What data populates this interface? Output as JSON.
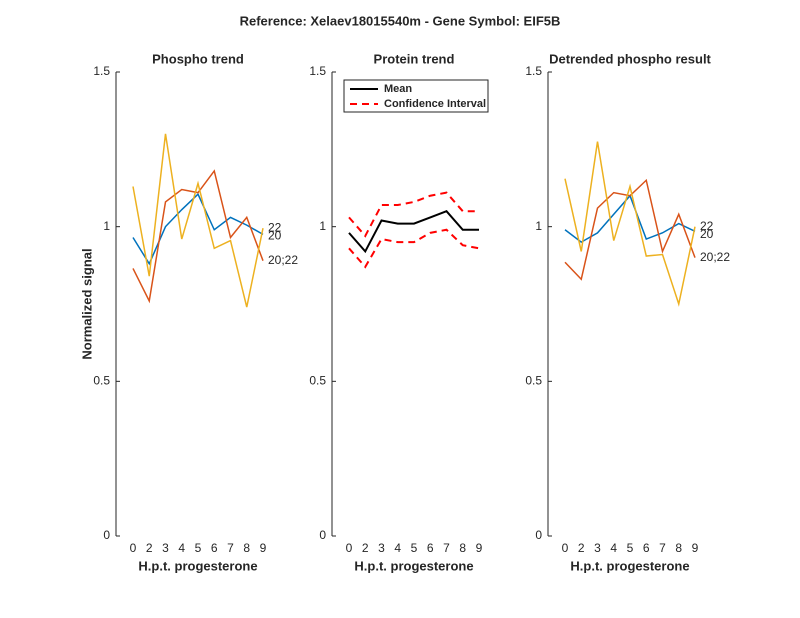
{
  "title": "Reference:  Xelaev18015540m - Gene Symbol:  EIF5B",
  "chart_data": [
    {
      "type": "line",
      "title": "Phospho trend",
      "xlabel": "H.p.t. progesterone",
      "ylabel": "Normalized signal",
      "categories": [
        "0",
        "2",
        "3",
        "4",
        "5",
        "6",
        "7",
        "8",
        "9"
      ],
      "ylim": [
        0,
        1.5
      ],
      "yticks": [
        0,
        0.5,
        1,
        1.5
      ],
      "legend": "end-labels",
      "series": [
        {
          "name": "20",
          "color": "#0072BD",
          "values": [
            0.965,
            0.88,
            1.0,
            1.055,
            1.105,
            0.99,
            1.03,
            1.005,
            0.975
          ]
        },
        {
          "name": "20;22",
          "color": "#D95319",
          "values": [
            0.865,
            0.76,
            1.08,
            1.12,
            1.11,
            1.18,
            0.965,
            1.03,
            0.89
          ]
        },
        {
          "name": "22",
          "color": "#EDB120",
          "values": [
            1.13,
            0.84,
            1.3,
            0.96,
            1.14,
            0.93,
            0.955,
            0.74,
            0.995
          ]
        }
      ]
    },
    {
      "type": "line",
      "title": "Protein trend",
      "xlabel": "H.p.t. progesterone",
      "categories": [
        "0",
        "2",
        "3",
        "4",
        "5",
        "6",
        "7",
        "8",
        "9"
      ],
      "ylim": [
        0,
        1.5
      ],
      "yticks": [
        0,
        0.5,
        1,
        1.5
      ],
      "legend": "upper left",
      "series": [
        {
          "name": "Mean",
          "color": "#000000",
          "values": [
            0.98,
            0.92,
            1.02,
            1.01,
            1.01,
            1.03,
            1.05,
            0.99,
            0.99
          ]
        },
        {
          "name": "Confidence Interval",
          "color": "#FF0000",
          "dashed": true,
          "values": [
            1.03,
            0.97,
            1.07,
            1.07,
            1.08,
            1.1,
            1.11,
            1.05,
            1.05
          ],
          "lower_values": [
            0.93,
            0.87,
            0.96,
            0.95,
            0.95,
            0.98,
            0.99,
            0.94,
            0.93
          ]
        }
      ]
    },
    {
      "type": "line",
      "title": "Detrended phospho result",
      "xlabel": "H.p.t. progesterone",
      "categories": [
        "0",
        "2",
        "3",
        "4",
        "5",
        "6",
        "7",
        "8",
        "9"
      ],
      "ylim": [
        0,
        1.5
      ],
      "yticks": [
        0,
        0.5,
        1,
        1.5
      ],
      "legend": "end-labels",
      "series": [
        {
          "name": "20",
          "color": "#0072BD",
          "values": [
            0.99,
            0.95,
            0.98,
            1.04,
            1.1,
            0.96,
            0.98,
            1.01,
            0.985
          ]
        },
        {
          "name": "20;22",
          "color": "#D95319",
          "values": [
            0.885,
            0.83,
            1.06,
            1.11,
            1.1,
            1.15,
            0.92,
            1.04,
            0.9
          ]
        },
        {
          "name": "22",
          "color": "#EDB120",
          "values": [
            1.155,
            0.92,
            1.275,
            0.955,
            1.13,
            0.905,
            0.91,
            0.75,
            1.0
          ]
        }
      ]
    }
  ]
}
